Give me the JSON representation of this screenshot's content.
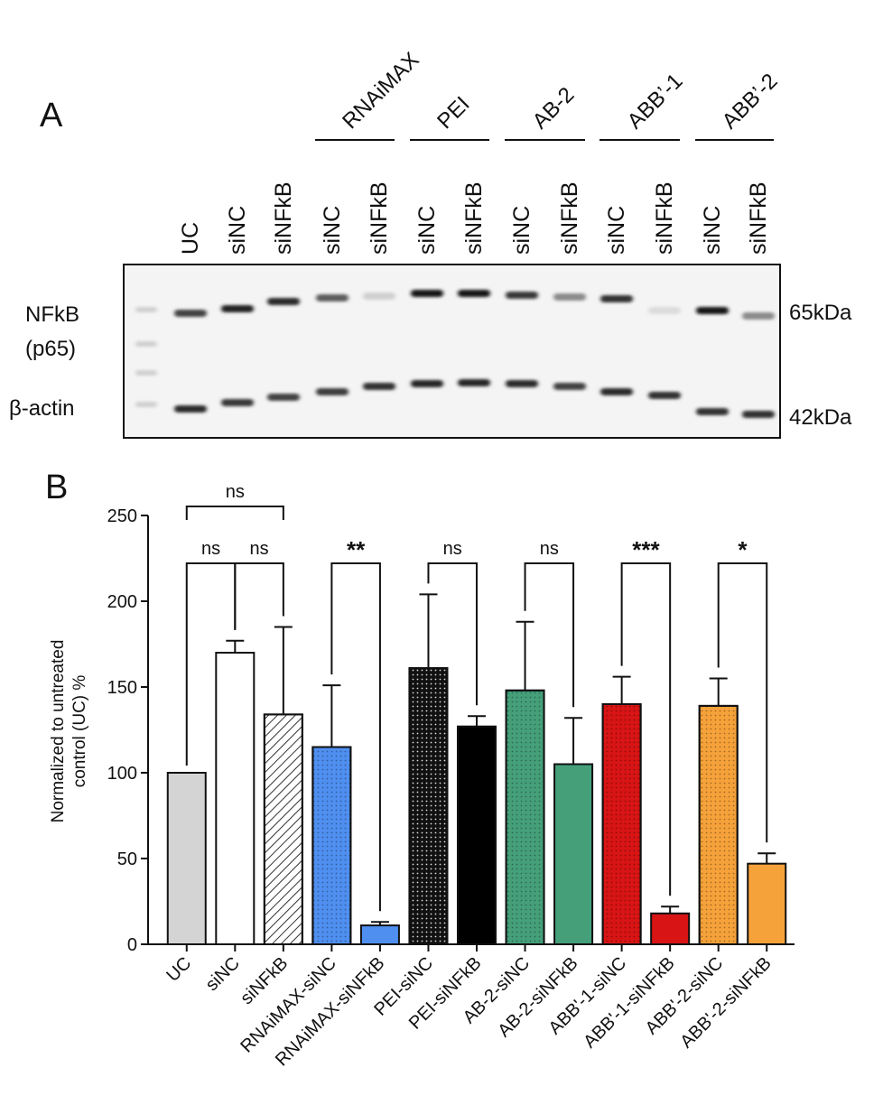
{
  "panel_a": {
    "label": "A",
    "group_labels": [
      "RNAiMAX",
      "PEI",
      "AB-2",
      "ABB’-1",
      "ABB’-2"
    ],
    "lane_labels": [
      "UC",
      "siNC",
      "siNFkB",
      "siNC",
      "siNFkB",
      "siNC",
      "siNFkB",
      "siNC",
      "siNFkB",
      "siNC",
      "siNFkB",
      "siNC",
      "siNFkB"
    ],
    "row_labels": [
      "NFkB",
      "(p65)",
      "β-actin"
    ],
    "mw_labels": [
      "65kDa",
      "42kDa"
    ],
    "band_intensity": {
      "nfkb": [
        0.8,
        0.95,
        0.9,
        0.7,
        0.2,
        1.0,
        1.0,
        0.85,
        0.5,
        0.88,
        0.15,
        1.0,
        0.5
      ],
      "actin": [
        0.9,
        0.85,
        0.8,
        0.82,
        0.88,
        0.92,
        0.92,
        0.9,
        0.8,
        0.9,
        0.88,
        0.88,
        0.88
      ]
    }
  },
  "chart_data": {
    "type": "bar",
    "panel_label": "B",
    "ylabel_lines": [
      "Normalized to untreated",
      "control (UC) %"
    ],
    "ylim": [
      0,
      250
    ],
    "yticks": [
      0,
      50,
      100,
      150,
      200,
      250
    ],
    "categories": [
      "UC",
      "siNC",
      "siNFkB",
      "RNAiMAX-siNC",
      "RNAiMAX-siNFkB",
      "PEI-siNC",
      "PEI-siNFkB",
      "AB-2-siNC",
      "AB-2-siNFkB",
      "ABB'-1-siNC",
      "ABB'-1-siNFkB",
      "ABB'-2-siNC",
      "ABB'-2-siNFkB"
    ],
    "values": [
      100,
      170,
      134,
      115,
      11,
      161,
      127,
      148,
      105,
      140,
      18,
      139,
      47
    ],
    "errors": [
      0,
      7,
      51,
      36,
      2,
      43,
      6,
      40,
      27,
      16,
      4,
      16,
      6
    ],
    "colors": [
      "#d4d4d4",
      "#ffffff",
      "#ffffff",
      "#4f8ff0",
      "#4f8ff0",
      "#111111",
      "#000000",
      "#45a07a",
      "#45a07a",
      "#d81414",
      "#d81414",
      "#f6a23a",
      "#f6a23a"
    ],
    "patterns": [
      "solid",
      "solid",
      "hatch",
      "dots",
      "solid",
      "dots",
      "solid",
      "dots",
      "solid",
      "dots",
      "solid",
      "dots",
      "solid"
    ],
    "comparisons": [
      {
        "from": 0,
        "to": 2,
        "label": "ns"
      },
      {
        "from": 0,
        "to": 1,
        "label": "ns"
      },
      {
        "from": 1,
        "to": 2,
        "label": "ns"
      },
      {
        "from": 3,
        "to": 4,
        "label": "**"
      },
      {
        "from": 5,
        "to": 6,
        "label": "ns"
      },
      {
        "from": 7,
        "to": 8,
        "label": "ns"
      },
      {
        "from": 9,
        "to": 10,
        "label": "***"
      },
      {
        "from": 11,
        "to": 12,
        "label": "*"
      }
    ]
  }
}
